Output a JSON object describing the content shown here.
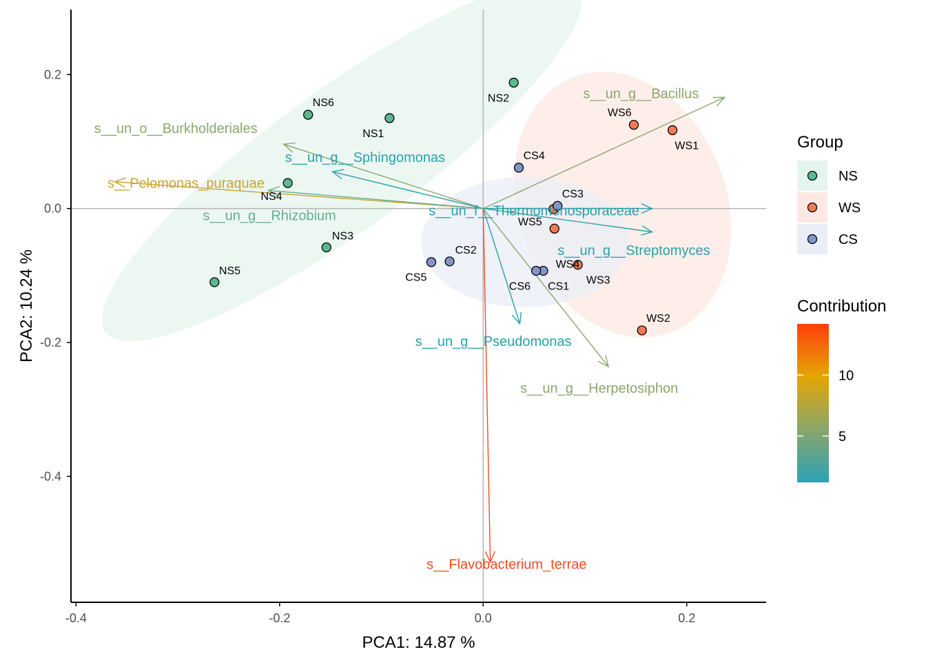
{
  "chart_data": {
    "type": "scatter",
    "subtype": "pca-biplot",
    "xlabel": "PCA1:  14.87 %",
    "ylabel": "PCA2:  10.24 %",
    "xlim": [
      -0.405,
      0.278
    ],
    "ylim": [
      -0.588,
      0.297
    ],
    "x_ticks": [
      -0.4,
      -0.2,
      0.0,
      0.2
    ],
    "x_tick_labels": [
      "-0.4",
      "-0.2",
      "0.0",
      "0.2"
    ],
    "y_ticks": [
      0.2,
      0.0,
      -0.2,
      -0.4
    ],
    "y_tick_labels": [
      "0.2",
      "0.0",
      "-0.2",
      "-0.4"
    ],
    "reference_lines": {
      "x": 0,
      "y": 0,
      "color": "#b3b3b3"
    },
    "grid": false,
    "groups": [
      {
        "name": "NS",
        "color": "#5cb88f",
        "ellipse_fill": "#e6f4ee",
        "ellipse": {
          "cx": -0.139,
          "cy": 0.072,
          "rx": 0.287,
          "ry": 0.105,
          "angle_deg": -36
        }
      },
      {
        "name": "WS",
        "color": "#f07a55",
        "ellipse_fill": "#fde8e3",
        "ellipse": {
          "cx": 0.137,
          "cy": 0.006,
          "rx": 0.102,
          "ry": 0.204,
          "angle_deg": -21
        }
      },
      {
        "name": "CS",
        "color": "#8395c8",
        "ellipse_fill": "#eaedf5",
        "ellipse": {
          "cx": 0.041,
          "cy": -0.05,
          "rx": 0.102,
          "ry": 0.097,
          "angle_deg": 0
        }
      }
    ],
    "points": [
      {
        "label": "NS1",
        "group": "NS",
        "x": -0.092,
        "y": 0.135,
        "label_dx": -0.016,
        "label_dy": -0.022
      },
      {
        "label": "NS2",
        "group": "NS",
        "x": 0.03,
        "y": 0.188,
        "label_dx": -0.015,
        "label_dy": -0.022
      },
      {
        "label": "NS3",
        "group": "NS",
        "x": -0.154,
        "y": -0.058,
        "label_dx": 0.016,
        "label_dy": 0.018
      },
      {
        "label": "NS4",
        "group": "NS",
        "x": -0.192,
        "y": 0.038,
        "label_dx": -0.016,
        "label_dy": -0.019
      },
      {
        "label": "NS5",
        "group": "NS",
        "x": -0.264,
        "y": -0.11,
        "label_dx": 0.015,
        "label_dy": 0.018
      },
      {
        "label": "NS6",
        "group": "NS",
        "x": -0.172,
        "y": 0.14,
        "label_dx": 0.015,
        "label_dy": 0.019
      },
      {
        "label": "WS1",
        "group": "WS",
        "x": 0.186,
        "y": 0.117,
        "label_dx": 0.014,
        "label_dy": -0.022
      },
      {
        "label": "WS2",
        "group": "WS",
        "x": 0.156,
        "y": -0.182,
        "label_dx": 0.016,
        "label_dy": 0.019
      },
      {
        "label": "WS3",
        "group": "WS",
        "x": 0.093,
        "y": -0.084,
        "label_dx": 0.02,
        "label_dy": -0.022
      },
      {
        "label": "WS4",
        "group": "WS",
        "x": 0.07,
        "y": -0.03,
        "label_dx": 0.013,
        "label_dy": -0.052
      },
      {
        "label": "WS5",
        "group": "WS",
        "x": 0.069,
        "y": -0.001,
        "label_dx": -0.023,
        "label_dy": -0.018
      },
      {
        "label": "WS6",
        "group": "WS",
        "x": 0.148,
        "y": 0.125,
        "label_dx": -0.014,
        "label_dy": 0.019
      },
      {
        "label": "CS1",
        "group": "CS",
        "x": 0.059,
        "y": -0.093,
        "label_dx": 0.015,
        "label_dy": -0.022
      },
      {
        "label": "CS2",
        "group": "CS",
        "x": -0.033,
        "y": -0.079,
        "label_dx": 0.016,
        "label_dy": 0.018
      },
      {
        "label": "CS3",
        "group": "CS",
        "x": 0.073,
        "y": 0.004,
        "label_dx": 0.015,
        "label_dy": 0.019
      },
      {
        "label": "CS4",
        "group": "CS",
        "x": 0.035,
        "y": 0.061,
        "label_dx": 0.015,
        "label_dy": 0.019
      },
      {
        "label": "CS5",
        "group": "CS",
        "x": -0.051,
        "y": -0.08,
        "label_dx": -0.015,
        "label_dy": -0.022
      },
      {
        "label": "CS6",
        "group": "CS",
        "x": 0.052,
        "y": -0.093,
        "label_dx": -0.016,
        "label_dy": -0.022
      }
    ],
    "loadings": [
      {
        "label": "s__un_g__Bacillus",
        "x": 0.237,
        "y": 0.166,
        "contribution": 5.0,
        "color": "#8aa66b",
        "label_x": 0.155,
        "label_y": 0.172
      },
      {
        "label": "s__un_o__Burkholderiales",
        "x": -0.196,
        "y": 0.096,
        "contribution": 5.1,
        "color": "#8aa66b",
        "label_x": -0.302,
        "label_y": 0.12
      },
      {
        "label": "s__un_g__Sphingomonas",
        "x": -0.148,
        "y": 0.055,
        "contribution": 2.3,
        "color": "#2aa1a8",
        "label_x": -0.116,
        "label_y": 0.077
      },
      {
        "label": "s__Pelomonas_puraquae",
        "x": -0.362,
        "y": 0.04,
        "contribution": 7.6,
        "color": "#c9a42c",
        "label_x": -0.292,
        "label_y": 0.038
      },
      {
        "label": "s__un_g__Rhizobium",
        "x": -0.211,
        "y": 0.027,
        "contribution": 4.0,
        "color": "#63ad90",
        "label_x": -0.21,
        "label_y": -0.01
      },
      {
        "label": "s__un_f__Thermomonosporaceae",
        "x": 0.166,
        "y": 0.0,
        "contribution": 2.2,
        "color": "#2aa1a8",
        "label_x": 0.05,
        "label_y": -0.003
      },
      {
        "label": "s__un_g__Streptomyces",
        "x": 0.166,
        "y": -0.035,
        "contribution": 2.1,
        "color": "#2aa1a8",
        "label_x": 0.148,
        "label_y": -0.062
      },
      {
        "label": "s__un_g__Pseudomonas",
        "x": 0.036,
        "y": -0.172,
        "contribution": 2.2,
        "color": "#2aa1a8",
        "label_x": 0.01,
        "label_y": -0.198
      },
      {
        "label": "s__un_g__Herpetosiphon",
        "x": 0.123,
        "y": -0.236,
        "contribution": 4.9,
        "color": "#8aa66b",
        "label_x": 0.114,
        "label_y": -0.268
      },
      {
        "label": "s__Flavobacterium_terrae",
        "x": 0.007,
        "y": -0.528,
        "contribution": 14.2,
        "color": "#f24b1c",
        "label_x": 0.023,
        "label_y": -0.531
      }
    ],
    "legend": {
      "placement": "right",
      "group_title": "Group",
      "group_items": [
        "NS",
        "WS",
        "CS"
      ],
      "contribution_title": "Contribution",
      "contribution_ticks": [
        5,
        10
      ],
      "contribution_tick_labels": [
        "5",
        "10"
      ],
      "contribution_range": [
        1.2,
        14.2
      ],
      "gradient_colors": [
        "#2ca2b4",
        "#8aa66b",
        "#e2a704",
        "#ff3d0a"
      ]
    }
  }
}
